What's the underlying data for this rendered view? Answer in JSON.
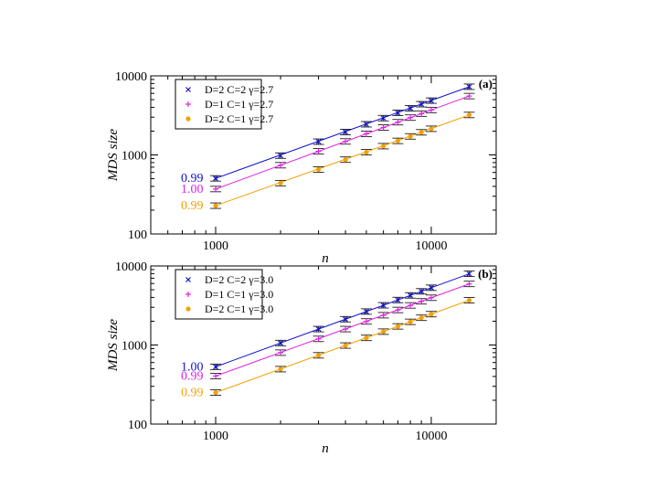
{
  "colors": {
    "series1": "#1010d0",
    "series2": "#e020e0",
    "series3": "#f5a000"
  },
  "chart_data": [
    {
      "type": "scatter",
      "panel_label": "(a)",
      "xlabel": "n",
      "ylabel": "MDS size",
      "xscale": "log",
      "yscale": "log",
      "xlim": [
        500,
        20000
      ],
      "ylim": [
        100,
        10000
      ],
      "x_ticks": [
        1000,
        10000
      ],
      "x_tick_labels": [
        "1000",
        "10000"
      ],
      "y_ticks": [
        100,
        1000,
        10000
      ],
      "y_tick_labels": [
        "100",
        "1000",
        "10000"
      ],
      "grid": false,
      "legend_position": "top-left",
      "x": [
        1000,
        2000,
        3000,
        4000,
        5000,
        6000,
        7000,
        8000,
        9000,
        10000,
        15000
      ],
      "series": [
        {
          "name": "D=2 C=2 γ=2.7",
          "marker": "x",
          "color": "#1010d0",
          "slope_label": "0.99",
          "values": [
            505,
            980,
            1470,
            1950,
            2440,
            2920,
            3410,
            3890,
            4380,
            4860,
            7280
          ]
        },
        {
          "name": "D=1 C=1 γ=2.7",
          "marker": "+",
          "color": "#e020e0",
          "slope_label": "1.00",
          "values": [
            370,
            740,
            1110,
            1480,
            1850,
            2220,
            2590,
            2960,
            3330,
            3700,
            5550
          ]
        },
        {
          "name": "D=2 C=1 γ=2.7",
          "marker": "dot",
          "color": "#f5a000",
          "slope_label": "0.99",
          "values": [
            228,
            440,
            655,
            870,
            1080,
            1290,
            1505,
            1715,
            1930,
            2140,
            3200
          ]
        }
      ]
    },
    {
      "type": "scatter",
      "panel_label": "(b)",
      "xlabel": "n",
      "ylabel": "MDS size",
      "xscale": "log",
      "yscale": "log",
      "xlim": [
        500,
        20000
      ],
      "ylim": [
        100,
        10000
      ],
      "x_ticks": [
        1000,
        10000
      ],
      "x_tick_labels": [
        "1000",
        "10000"
      ],
      "y_ticks": [
        100,
        1000,
        10000
      ],
      "y_tick_labels": [
        "100",
        "1000",
        "10000"
      ],
      "grid": false,
      "legend_position": "top-left",
      "x": [
        1000,
        2000,
        3000,
        4000,
        5000,
        6000,
        7000,
        8000,
        9000,
        10000,
        15000
      ],
      "series": [
        {
          "name": "D=2 C=2 γ=3.0",
          "marker": "x",
          "color": "#1010d0",
          "slope_label": "1.00",
          "values": [
            530,
            1060,
            1590,
            2120,
            2650,
            3180,
            3710,
            4240,
            4770,
            5300,
            7950
          ]
        },
        {
          "name": "D=1 C=1 γ=3.0",
          "marker": "+",
          "color": "#e020e0",
          "slope_label": "0.99",
          "values": [
            405,
            800,
            1195,
            1590,
            1985,
            2380,
            2775,
            3170,
            3565,
            3960,
            5920
          ]
        },
        {
          "name": "D=2 C=1 γ=3.0",
          "marker": "dot",
          "color": "#f5a000",
          "slope_label": "0.99",
          "values": [
            250,
            495,
            740,
            985,
            1230,
            1475,
            1720,
            1965,
            2210,
            2455,
            3680
          ]
        }
      ]
    }
  ]
}
